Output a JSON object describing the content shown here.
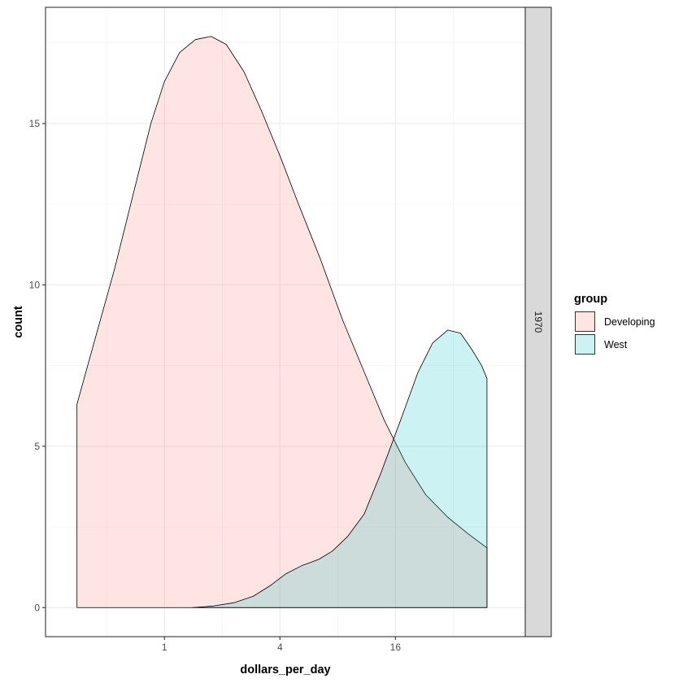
{
  "chart_data": {
    "type": "area",
    "xlabel": "dollars_per_day",
    "ylabel": "count",
    "x_scale": "log2",
    "x_ticks": [
      1,
      4,
      16
    ],
    "y_ticks": [
      0,
      5,
      10,
      15
    ],
    "xlim": [
      0.24,
      76
    ],
    "ylim": [
      -0.9,
      18.6
    ],
    "facet_label": "1970",
    "legend": {
      "title": "group",
      "position": "right"
    },
    "grid": true,
    "series": [
      {
        "name": "Developing",
        "fill": "#F8766D",
        "points": [
          [
            0.35,
            6.3
          ],
          [
            0.42,
            8.0
          ],
          [
            0.55,
            10.5
          ],
          [
            0.7,
            13.0
          ],
          [
            0.85,
            15.0
          ],
          [
            1.0,
            16.3
          ],
          [
            1.2,
            17.2
          ],
          [
            1.45,
            17.6
          ],
          [
            1.75,
            17.7
          ],
          [
            2.1,
            17.45
          ],
          [
            2.6,
            16.6
          ],
          [
            3.2,
            15.4
          ],
          [
            4.0,
            14.0
          ],
          [
            5.0,
            12.5
          ],
          [
            6.5,
            10.8
          ],
          [
            8.5,
            8.9
          ],
          [
            11.0,
            7.3
          ],
          [
            14.0,
            5.8
          ],
          [
            18.0,
            4.5
          ],
          [
            23.0,
            3.5
          ],
          [
            30.0,
            2.8
          ],
          [
            38.0,
            2.3
          ],
          [
            48.0,
            1.85
          ]
        ]
      },
      {
        "name": "West",
        "fill": "#00BFC4",
        "points": [
          [
            1.4,
            0.0
          ],
          [
            1.8,
            0.05
          ],
          [
            2.3,
            0.15
          ],
          [
            2.9,
            0.35
          ],
          [
            3.6,
            0.7
          ],
          [
            4.3,
            1.05
          ],
          [
            5.2,
            1.3
          ],
          [
            6.4,
            1.5
          ],
          [
            7.5,
            1.75
          ],
          [
            9.0,
            2.2
          ],
          [
            11.0,
            2.9
          ],
          [
            13.5,
            4.2
          ],
          [
            17.0,
            5.8
          ],
          [
            21.0,
            7.3
          ],
          [
            25.0,
            8.2
          ],
          [
            30.0,
            8.6
          ],
          [
            35.0,
            8.5
          ],
          [
            40.0,
            8.0
          ],
          [
            45.0,
            7.5
          ],
          [
            48.0,
            7.1
          ]
        ]
      }
    ]
  }
}
